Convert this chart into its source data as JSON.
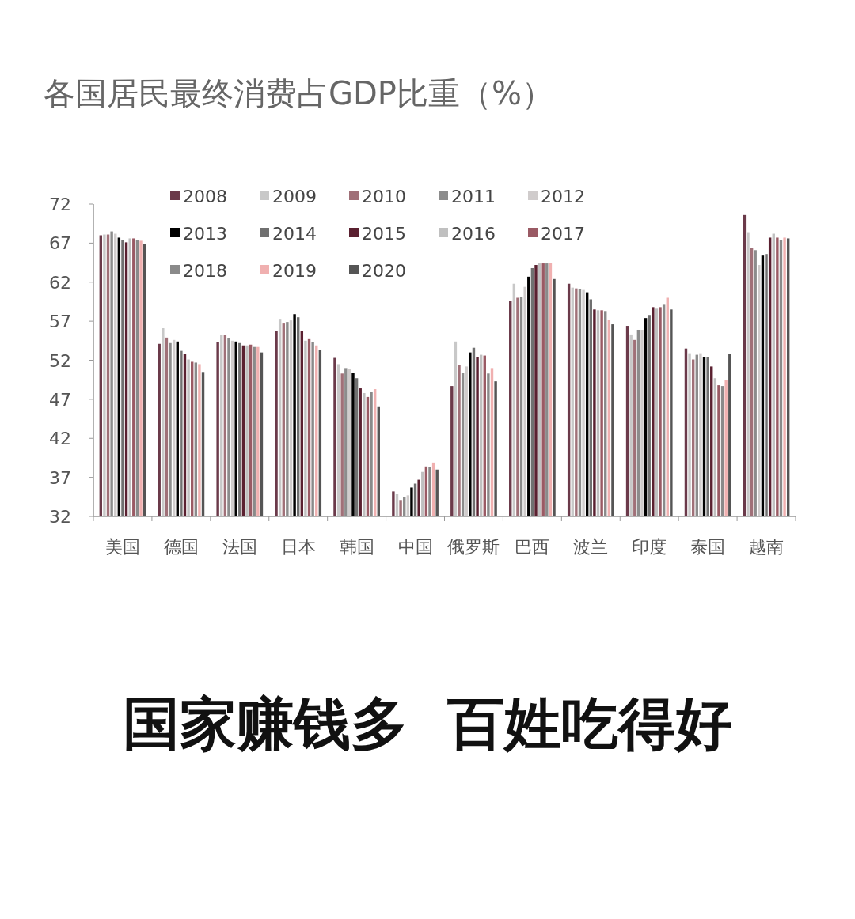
{
  "chart_data": {
    "type": "bar",
    "title": "各国居民最终消费占GDP比重（%）",
    "categories": [
      "美国",
      "德国",
      "法国",
      "日本",
      "韩国",
      "中国",
      "俄罗斯",
      "巴西",
      "波兰",
      "印度",
      "泰国",
      "越南"
    ],
    "ylim": [
      32,
      72
    ],
    "yticks": [
      32,
      37,
      42,
      47,
      52,
      57,
      62,
      67,
      72
    ],
    "grid": false,
    "legend": "top left",
    "annotations": [
      "国家赚钱多  百姓吃得好"
    ],
    "series": [
      {
        "name": "2008",
        "color": "#6b3a4a",
        "values": [
          68.0,
          54.1,
          54.3,
          55.7,
          52.3,
          35.2,
          48.7,
          59.6,
          61.8,
          56.4,
          53.5,
          70.6
        ]
      },
      {
        "name": "2009",
        "color": "#c8c8c8",
        "values": [
          68.1,
          56.1,
          55.2,
          57.3,
          51.5,
          34.9,
          54.4,
          61.8,
          61.3,
          55.3,
          52.9,
          68.4
        ]
      },
      {
        "name": "2010",
        "color": "#a07078",
        "values": [
          68.1,
          54.9,
          55.2,
          56.7,
          50.3,
          34.1,
          51.4,
          60.0,
          61.2,
          54.6,
          52.1,
          66.4
        ]
      },
      {
        "name": "2011",
        "color": "#8c8c8c",
        "values": [
          68.5,
          54.2,
          54.8,
          56.9,
          51.0,
          34.5,
          50.4,
          60.1,
          61.1,
          55.9,
          52.7,
          66.1
        ]
      },
      {
        "name": "2012",
        "color": "#d0cccc",
        "values": [
          68.2,
          54.6,
          54.5,
          57.1,
          50.9,
          34.7,
          51.2,
          61.4,
          61.0,
          55.9,
          52.9,
          64.2
        ]
      },
      {
        "name": "2013",
        "color": "#000000",
        "values": [
          67.7,
          54.4,
          54.4,
          57.9,
          50.4,
          35.7,
          53.0,
          62.7,
          60.7,
          57.4,
          52.4,
          65.4
        ]
      },
      {
        "name": "2014",
        "color": "#707070",
        "values": [
          67.4,
          53.2,
          54.2,
          57.5,
          49.7,
          36.2,
          53.6,
          63.8,
          59.8,
          57.8,
          52.4,
          65.6
        ]
      },
      {
        "name": "2015",
        "color": "#5a2030",
        "values": [
          67.1,
          52.8,
          53.9,
          55.7,
          48.4,
          36.7,
          52.4,
          64.2,
          58.5,
          58.8,
          51.2,
          67.7
        ]
      },
      {
        "name": "2016",
        "color": "#c0c0c0",
        "values": [
          67.6,
          52.1,
          53.9,
          54.5,
          47.8,
          37.7,
          52.7,
          64.4,
          58.4,
          58.6,
          49.7,
          68.2
        ]
      },
      {
        "name": "2017",
        "color": "#9a5a64",
        "values": [
          67.6,
          51.8,
          54.0,
          54.7,
          47.3,
          38.4,
          52.6,
          64.4,
          58.4,
          58.8,
          48.8,
          67.7
        ]
      },
      {
        "name": "2018",
        "color": "#8a8a8a",
        "values": [
          67.4,
          51.7,
          53.7,
          54.3,
          47.9,
          38.3,
          50.3,
          64.4,
          58.3,
          59.1,
          48.7,
          67.4
        ]
      },
      {
        "name": "2019",
        "color": "#f0b0b0",
        "values": [
          67.3,
          51.5,
          53.7,
          53.9,
          48.3,
          38.9,
          51.0,
          64.5,
          57.2,
          60.0,
          49.5,
          67.7
        ]
      },
      {
        "name": "2020",
        "color": "#555555",
        "values": [
          66.9,
          50.5,
          53.0,
          53.3,
          46.1,
          38.0,
          49.3,
          62.4,
          56.6,
          58.5,
          52.8,
          67.6
        ]
      }
    ]
  }
}
